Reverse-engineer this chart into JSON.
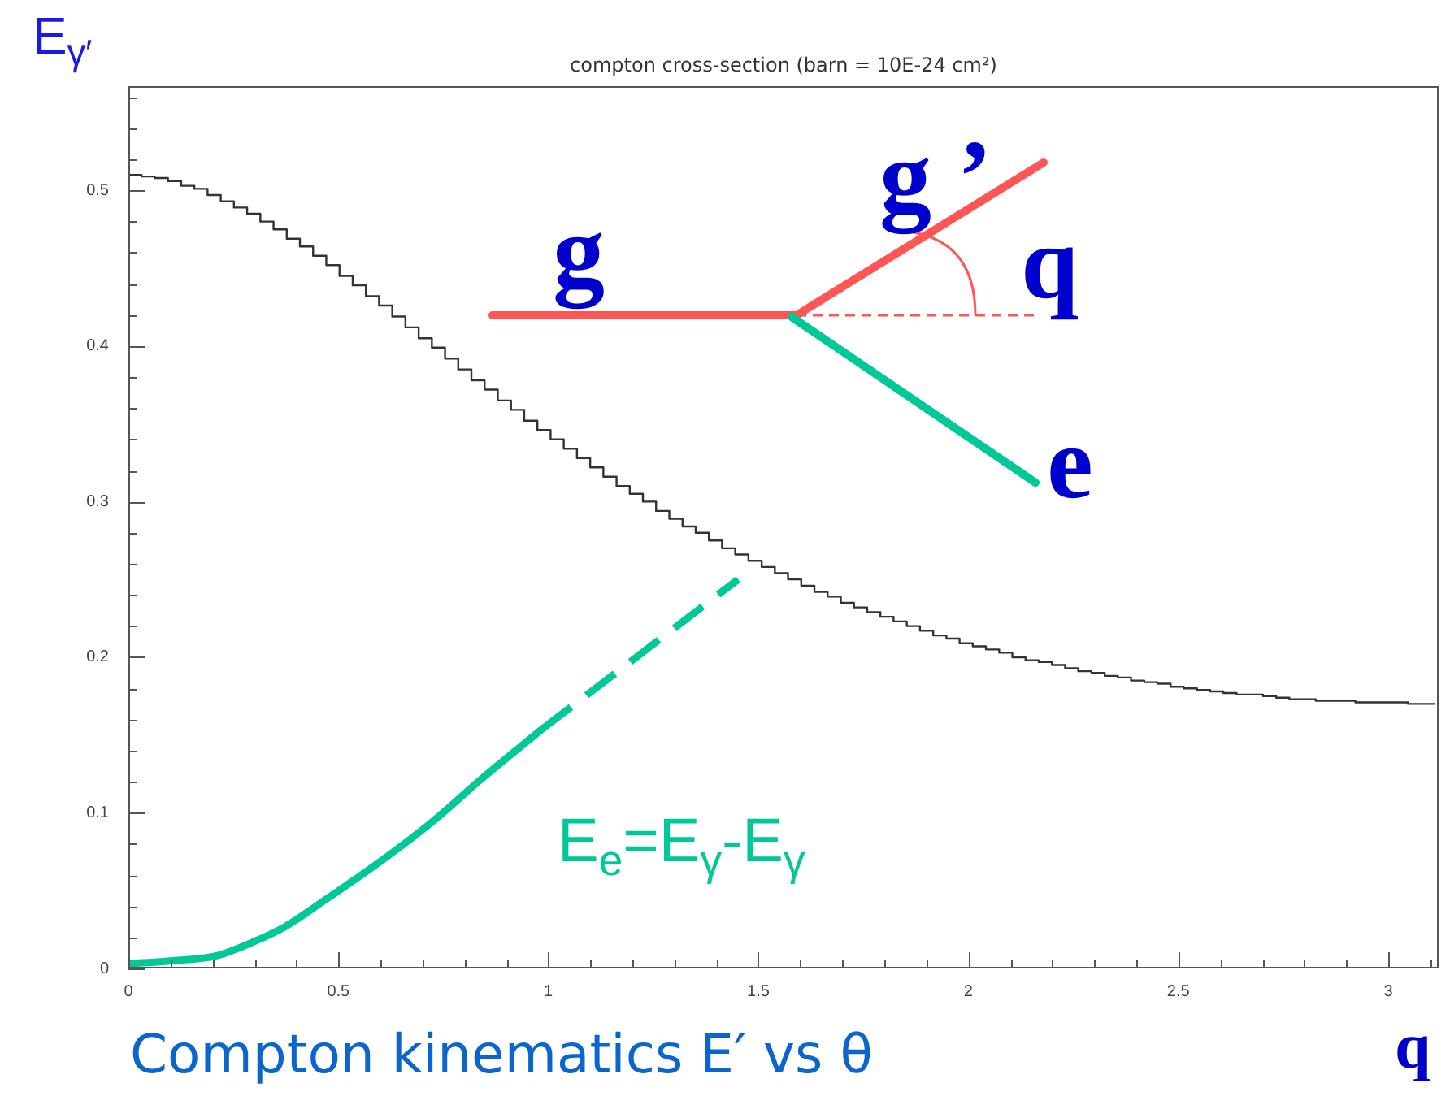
{
  "chart_data": {
    "type": "step",
    "title": "compton cross-section (barn = 10E-24 cm²)",
    "xlabel": "q",
    "ylabel": "E$_{γ′}$",
    "annotations": [
      "Compton kinematics E′ vs θ",
      "g",
      "g ’",
      "q",
      "e"
    ],
    "xlim": [
      0,
      3.12
    ],
    "ylim": [
      0,
      0.567
    ],
    "xticks": [
      0,
      {
        "value": 0.1,
        "label": null
      },
      {
        "value": 0.2,
        "label": null
      },
      {
        "value": 0.3,
        "label": null
      },
      {
        "value": 0.4,
        "label": null
      },
      0.5,
      {
        "value": 0.6,
        "label": null
      },
      {
        "value": 0.7,
        "label": null
      },
      {
        "value": 0.8,
        "label": null
      },
      {
        "value": 0.9,
        "label": null
      },
      1,
      {
        "value": 1.1,
        "label": null
      },
      {
        "value": 1.2,
        "label": null
      },
      {
        "value": 1.3,
        "label": null
      },
      {
        "value": 1.4,
        "label": null
      },
      1.5,
      {
        "value": 1.6,
        "label": null
      },
      {
        "value": 1.7,
        "label": null
      },
      {
        "value": 1.8,
        "label": null
      },
      {
        "value": 1.9,
        "label": null
      },
      2,
      {
        "value": 2.1,
        "label": null
      },
      {
        "value": 2.2,
        "label": null
      },
      {
        "value": 2.3,
        "label": null
      },
      {
        "value": 2.4,
        "label": null
      },
      2.5,
      {
        "value": 2.6,
        "label": null
      },
      {
        "value": 2.7,
        "label": null
      },
      {
        "value": 2.8,
        "label": null
      },
      {
        "value": 2.9,
        "label": null
      },
      3,
      {
        "value": 3.1,
        "label": null
      }
    ],
    "yticks": [
      0,
      {
        "value": 0.02,
        "label": null
      },
      {
        "value": 0.04,
        "label": null
      },
      {
        "value": 0.06,
        "label": null
      },
      {
        "value": 0.08,
        "label": null
      },
      0.1,
      {
        "value": 0.12,
        "label": null
      },
      {
        "value": 0.14,
        "label": null
      },
      {
        "value": 0.16,
        "label": null
      },
      {
        "value": 0.18,
        "label": null
      },
      0.2,
      {
        "value": 0.22,
        "label": null
      },
      {
        "value": 0.24,
        "label": null
      },
      {
        "value": 0.26,
        "label": null
      },
      {
        "value": 0.28,
        "label": null
      },
      0.3,
      {
        "value": 0.32,
        "label": null
      },
      {
        "value": 0.34,
        "label": null
      },
      {
        "value": 0.36,
        "label": null
      },
      {
        "value": 0.38,
        "label": null
      },
      0.4,
      {
        "value": 0.42,
        "label": null
      },
      {
        "value": 0.44,
        "label": null
      },
      {
        "value": 0.46,
        "label": null
      },
      {
        "value": 0.48,
        "label": null
      },
      0.5,
      {
        "value": 0.52,
        "label": null
      },
      {
        "value": 0.54,
        "label": null
      },
      {
        "value": 0.56,
        "label": null
      }
    ],
    "series": [
      {
        "color": "#333333",
        "x": [
          0,
          0.0314,
          0.0628,
          0.0942,
          0.1257,
          0.1571,
          0.1885,
          0.2199,
          0.2513,
          0.2827,
          0.3142,
          0.3456,
          0.377,
          0.4084,
          0.4398,
          0.4712,
          0.5027,
          0.5341,
          0.5655,
          0.5969,
          0.6283,
          0.6597,
          0.6912,
          0.7226,
          0.754,
          0.7854,
          0.8168,
          0.8482,
          0.8796,
          0.9111,
          0.9425,
          0.9739,
          1.0053,
          1.0367,
          1.0681,
          1.0996,
          1.131,
          1.1624,
          1.1938,
          1.2252,
          1.2566,
          1.2881,
          1.3195,
          1.3509,
          1.3823,
          1.4137,
          1.4451,
          1.4765,
          1.508,
          1.5394,
          1.5708,
          1.6022,
          1.6336,
          1.665,
          1.6965,
          1.7279,
          1.7593,
          1.7907,
          1.8221,
          1.8535,
          1.885,
          1.9164,
          1.9478,
          1.9792,
          2.0106,
          2.042,
          2.0735,
          2.1049,
          2.1363,
          2.1677,
          2.1991,
          2.2305,
          2.2619,
          2.2934,
          2.3248,
          2.3562,
          2.3876,
          2.419,
          2.4504,
          2.4819,
          2.5133,
          2.5447,
          2.5761,
          2.6075,
          2.6389,
          2.6704,
          2.7018,
          2.7332,
          2.7646,
          2.796,
          2.8274,
          2.8588,
          2.8903,
          2.9217,
          2.9531,
          2.9845,
          3.0159,
          3.0473,
          3.0788,
          3.1102
        ],
        "values": [
          0.511,
          0.51,
          0.509,
          0.508,
          0.506,
          0.503,
          0.501,
          0.497,
          0.493,
          0.489,
          0.485,
          0.48,
          0.475,
          0.469,
          0.464,
          0.458,
          0.452,
          0.445,
          0.439,
          0.432,
          0.426,
          0.419,
          0.412,
          0.405,
          0.399,
          0.392,
          0.385,
          0.378,
          0.372,
          0.365,
          0.359,
          0.352,
          0.346,
          0.34,
          0.334,
          0.328,
          0.322,
          0.316,
          0.31,
          0.305,
          0.3,
          0.294,
          0.289,
          0.284,
          0.28,
          0.275,
          0.27,
          0.266,
          0.262,
          0.258,
          0.254,
          0.25,
          0.246,
          0.242,
          0.239,
          0.235,
          0.232,
          0.229,
          0.226,
          0.223,
          0.22,
          0.217,
          0.214,
          0.212,
          0.209,
          0.207,
          0.205,
          0.203,
          0.2,
          0.198,
          0.197,
          0.195,
          0.193,
          0.191,
          0.19,
          0.188,
          0.187,
          0.185,
          0.184,
          0.183,
          0.181,
          0.18,
          0.179,
          0.178,
          0.177,
          0.176,
          0.176,
          0.175,
          0.174,
          0.173,
          0.173,
          0.172,
          0.172,
          0.172,
          0.171,
          0.171,
          0.171,
          0.171,
          0.17,
          0.17
        ]
      },
      {
        "type": "line",
        "name": "E$_{e}$=E$_{γ}$-E$_{γ}$",
        "color": "#00c896",
        "x": [
          0,
          0.106,
          0.208,
          0.297,
          0.374,
          0.463,
          0.591,
          0.718,
          0.846,
          0.986
        ],
        "values": [
          0.003,
          0.005,
          0.008,
          0.017,
          0.027,
          0.043,
          0.067,
          0.093,
          0.123,
          0.154
        ]
      },
      {
        "type": "line",
        "color": "#00c896",
        "line_style": "dashed",
        "x": [
          0.986,
          1.452
        ],
        "values": [
          0.154,
          0.25
        ]
      }
    ]
  }
}
